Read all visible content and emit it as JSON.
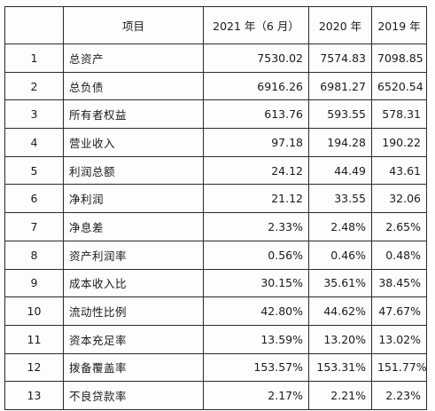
{
  "table": {
    "headers": [
      "",
      "项目",
      "2021 年（6 月）",
      "2020 年",
      "2019 年"
    ],
    "rows": [
      {
        "index": "1",
        "item": "总资产",
        "y2021": "7530.02",
        "y2020": "7574.83",
        "y2019": "7098.85"
      },
      {
        "index": "2",
        "item": "总负债",
        "y2021": "6916.26",
        "y2020": "6981.27",
        "y2019": "6520.54"
      },
      {
        "index": "3",
        "item": "所有者权益",
        "y2021": "613.76",
        "y2020": "593.55",
        "y2019": "578.31"
      },
      {
        "index": "4",
        "item": "营业收入",
        "y2021": "97.18",
        "y2020": "194.28",
        "y2019": "190.22"
      },
      {
        "index": "5",
        "item": "利润总额",
        "y2021": "24.12",
        "y2020": "44.49",
        "y2019": "43.61"
      },
      {
        "index": "6",
        "item": "净利润",
        "y2021": "21.12",
        "y2020": "33.55",
        "y2019": "32.06"
      },
      {
        "index": "7",
        "item": "净息差",
        "y2021": "2.33%",
        "y2020": "2.48%",
        "y2019": "2.65%"
      },
      {
        "index": "8",
        "item": "资产利润率",
        "y2021": "0.56%",
        "y2020": "0.46%",
        "y2019": "0.48%"
      },
      {
        "index": "9",
        "item": "成本收入比",
        "y2021": "30.15%",
        "y2020": "35.61%",
        "y2019": "38.45%"
      },
      {
        "index": "10",
        "item": "流动性比例",
        "y2021": "42.80%",
        "y2020": "44.62%",
        "y2019": "47.67%"
      },
      {
        "index": "11",
        "item": "资本充足率",
        "y2021": "13.59%",
        "y2020": "13.20%",
        "y2019": "13.02%"
      },
      {
        "index": "12",
        "item": "拨备覆盖率",
        "y2021": "153.57%",
        "y2020": "153.31%",
        "y2019": "151.77%"
      },
      {
        "index": "13",
        "item": "不良贷款率",
        "y2021": "2.17%",
        "y2020": "2.21%",
        "y2019": "2.23%"
      }
    ]
  }
}
